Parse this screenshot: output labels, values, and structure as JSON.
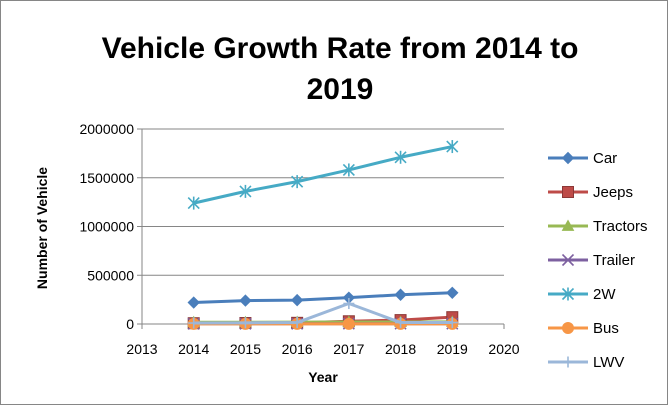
{
  "chart_data": {
    "type": "line",
    "title_line1": "Vehicle Growth Rate from 2014 to",
    "title_line2": "2019",
    "xlabel": "Year",
    "ylabel": "Number of Vehicle",
    "xlim": [
      2013,
      2020
    ],
    "ylim": [
      0,
      2000000
    ],
    "x_ticks": [
      2013,
      2014,
      2015,
      2016,
      2017,
      2018,
      2019,
      2020
    ],
    "y_ticks": [
      0,
      500000,
      1000000,
      1500000,
      2000000
    ],
    "grid": "horizontal",
    "legend_position": "right",
    "x": [
      2014,
      2015,
      2016,
      2017,
      2018,
      2019
    ],
    "series": [
      {
        "name": "Car",
        "color": "#4a7ebb",
        "marker": "diamond",
        "values": [
          220000,
          240000,
          245000,
          270000,
          300000,
          320000
        ]
      },
      {
        "name": "Jeeps",
        "color": "#be4b48",
        "marker": "square",
        "values": [
          8000,
          10000,
          12000,
          28000,
          40000,
          70000
        ]
      },
      {
        "name": "Tractors",
        "color": "#98b954",
        "marker": "triangle",
        "values": [
          18000,
          18000,
          19000,
          20000,
          20000,
          22000
        ]
      },
      {
        "name": "Trailer",
        "color": "#7d60a0",
        "marker": "x",
        "values": [
          2000,
          2000,
          2000,
          3000,
          3000,
          3000
        ]
      },
      {
        "name": "2W",
        "color": "#46aac5",
        "marker": "star",
        "values": [
          1240000,
          1360000,
          1460000,
          1580000,
          1710000,
          1820000
        ]
      },
      {
        "name": "Bus",
        "color": "#f79646",
        "marker": "circle",
        "values": [
          1000,
          1000,
          1000,
          1000,
          1000,
          1000
        ]
      },
      {
        "name": "LWV",
        "color": "#9bb7d9",
        "marker": "plus",
        "values": [
          10000,
          12000,
          15000,
          210000,
          15000,
          15000
        ]
      }
    ]
  }
}
